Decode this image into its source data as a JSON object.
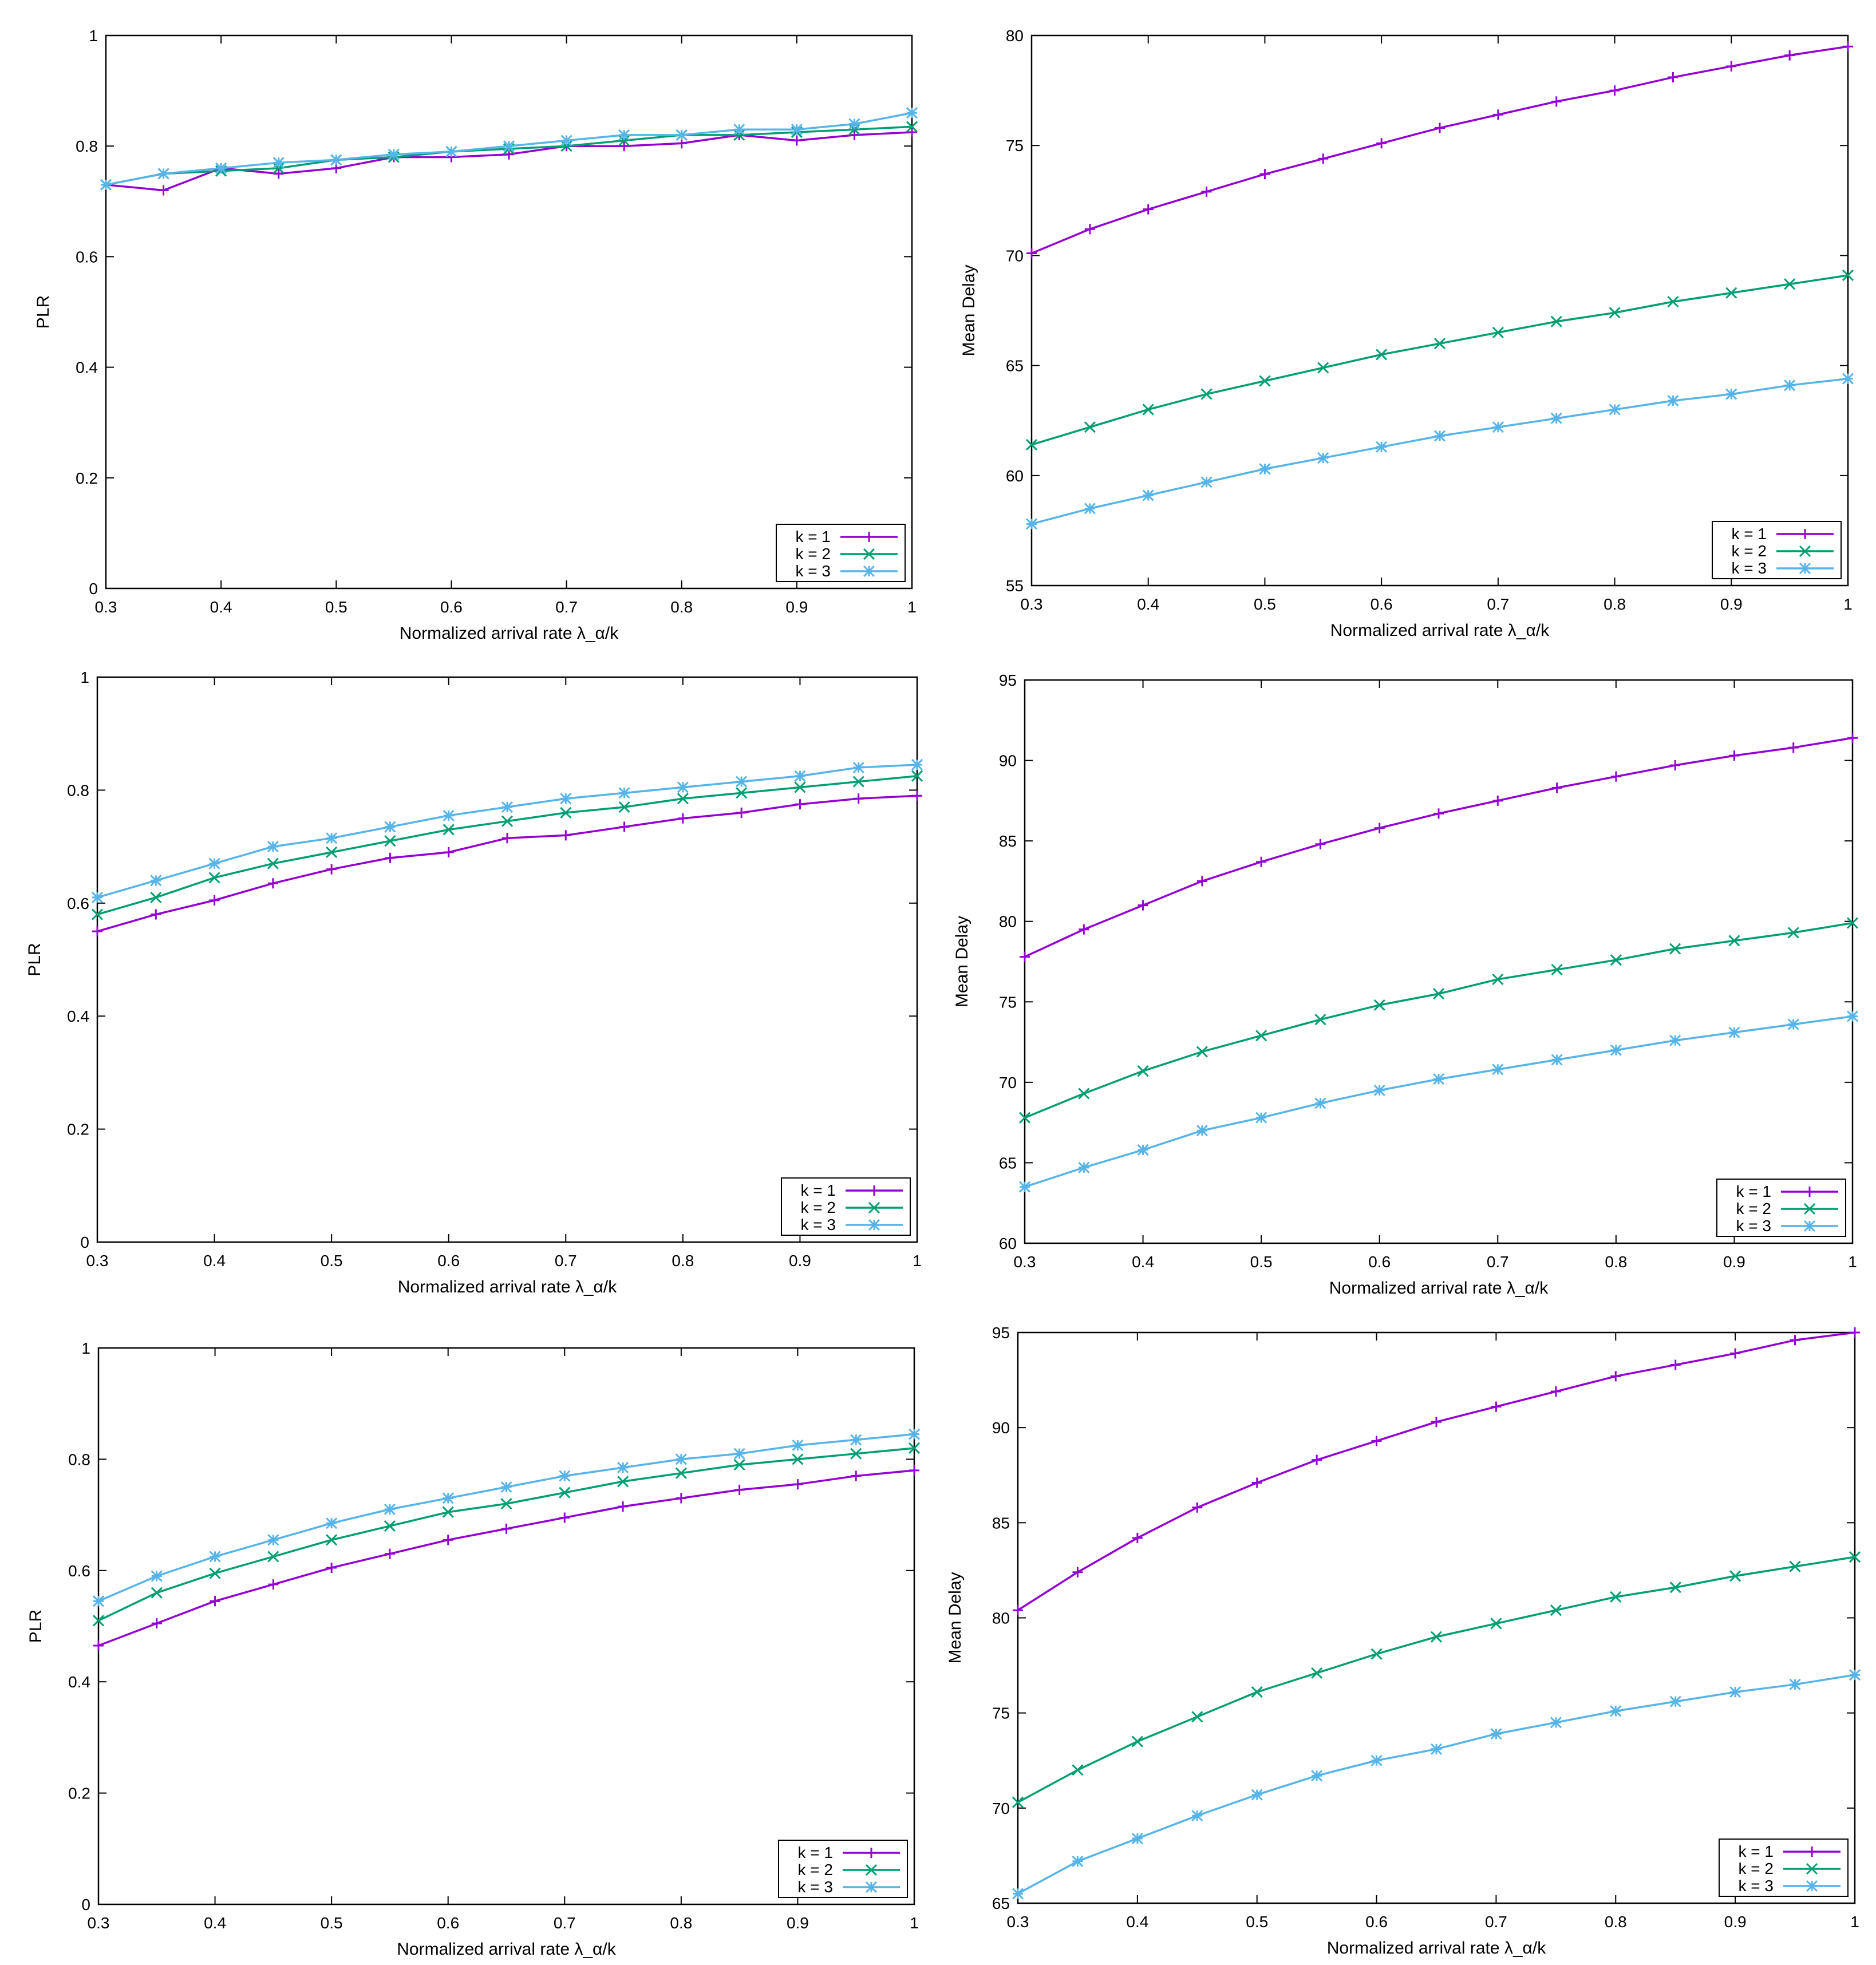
{
  "colors": {
    "k1": "#9400d3",
    "k2": "#009e73",
    "k3": "#56b4e9",
    "axis": "#000000"
  },
  "chart_data": [
    {
      "type": "line",
      "position": "top-left",
      "xlabel": "Normalized arrival rate λ_α/k",
      "ylabel": "PLR",
      "xlim": [
        0.3,
        1
      ],
      "ylim": [
        0,
        1
      ],
      "xticks": [
        "0.3",
        "0.4",
        "0.5",
        "0.6",
        "0.7",
        "0.8",
        "0.9",
        "1"
      ],
      "yticks": [
        "0",
        "0.2",
        "0.4",
        "0.6",
        "0.8",
        "1"
      ],
      "legend_placement": "bottom-right",
      "x": [
        0.3,
        0.35,
        0.4,
        0.45,
        0.5,
        0.55,
        0.6,
        0.65,
        0.7,
        0.75,
        0.8,
        0.85,
        0.9,
        0.95,
        1.0
      ],
      "series": [
        {
          "name": "k = 1",
          "values": [
            0.73,
            0.72,
            0.76,
            0.75,
            0.76,
            0.78,
            0.78,
            0.785,
            0.8,
            0.8,
            0.805,
            0.82,
            0.81,
            0.82,
            0.825
          ]
        },
        {
          "name": "k = 2",
          "values": [
            0.73,
            0.75,
            0.755,
            0.76,
            0.775,
            0.78,
            0.79,
            0.795,
            0.8,
            0.81,
            0.82,
            0.82,
            0.825,
            0.83,
            0.835
          ]
        },
        {
          "name": "k = 3",
          "values": [
            0.73,
            0.75,
            0.76,
            0.77,
            0.775,
            0.785,
            0.79,
            0.8,
            0.81,
            0.82,
            0.82,
            0.83,
            0.83,
            0.84,
            0.86
          ]
        }
      ]
    },
    {
      "type": "line",
      "position": "top-right",
      "xlabel": "Normalized arrival rate λ_α/k",
      "ylabel": "Mean Delay",
      "xlim": [
        0.3,
        1
      ],
      "ylim": [
        55,
        80
      ],
      "xticks": [
        "0.3",
        "0.4",
        "0.5",
        "0.6",
        "0.7",
        "0.8",
        "0.9",
        "1"
      ],
      "yticks": [
        "55",
        "60",
        "65",
        "70",
        "75",
        "80"
      ],
      "legend_placement": "bottom-right",
      "x": [
        0.3,
        0.35,
        0.4,
        0.45,
        0.5,
        0.55,
        0.6,
        0.65,
        0.7,
        0.75,
        0.8,
        0.85,
        0.9,
        0.95,
        1.0
      ],
      "series": [
        {
          "name": "k = 1",
          "values": [
            70.1,
            71.2,
            72.1,
            72.9,
            73.7,
            74.4,
            75.1,
            75.8,
            76.4,
            77.0,
            77.5,
            78.1,
            78.6,
            79.1,
            79.5
          ]
        },
        {
          "name": "k = 2",
          "values": [
            61.4,
            62.2,
            63.0,
            63.7,
            64.3,
            64.9,
            65.5,
            66.0,
            66.5,
            67.0,
            67.4,
            67.9,
            68.3,
            68.7,
            69.1
          ]
        },
        {
          "name": "k = 3",
          "values": [
            57.8,
            58.5,
            59.1,
            59.7,
            60.3,
            60.8,
            61.3,
            61.8,
            62.2,
            62.6,
            63.0,
            63.4,
            63.7,
            64.1,
            64.4
          ]
        }
      ]
    },
    {
      "type": "line",
      "position": "middle-left",
      "xlabel": "Normalized arrival rate λ_α/k",
      "ylabel": "PLR",
      "xlim": [
        0.3,
        1
      ],
      "ylim": [
        0,
        1
      ],
      "xticks": [
        "0.3",
        "0.4",
        "0.5",
        "0.6",
        "0.7",
        "0.8",
        "0.9",
        "1"
      ],
      "yticks": [
        "0",
        "0.2",
        "0.4",
        "0.6",
        "0.8",
        "1"
      ],
      "legend_placement": "bottom-right",
      "x": [
        0.3,
        0.35,
        0.4,
        0.45,
        0.5,
        0.55,
        0.6,
        0.65,
        0.7,
        0.75,
        0.8,
        0.85,
        0.9,
        0.95,
        1.0
      ],
      "series": [
        {
          "name": "k = 1",
          "values": [
            0.55,
            0.58,
            0.605,
            0.635,
            0.66,
            0.68,
            0.69,
            0.715,
            0.72,
            0.735,
            0.75,
            0.76,
            0.775,
            0.785,
            0.79
          ]
        },
        {
          "name": "k = 2",
          "values": [
            0.58,
            0.61,
            0.645,
            0.67,
            0.69,
            0.71,
            0.73,
            0.745,
            0.76,
            0.77,
            0.785,
            0.795,
            0.805,
            0.815,
            0.825
          ]
        },
        {
          "name": "k = 3",
          "values": [
            0.61,
            0.64,
            0.67,
            0.7,
            0.715,
            0.735,
            0.755,
            0.77,
            0.785,
            0.795,
            0.805,
            0.815,
            0.825,
            0.84,
            0.845
          ]
        }
      ]
    },
    {
      "type": "line",
      "position": "middle-right",
      "xlabel": "Normalized arrival rate λ_α/k",
      "ylabel": "Mean Delay",
      "xlim": [
        0.3,
        1
      ],
      "ylim": [
        60,
        95
      ],
      "xticks": [
        "0.3",
        "0.4",
        "0.5",
        "0.6",
        "0.7",
        "0.8",
        "0.9",
        "1"
      ],
      "yticks": [
        "60",
        "65",
        "70",
        "75",
        "80",
        "85",
        "90",
        "95"
      ],
      "legend_placement": "bottom-right",
      "x": [
        0.3,
        0.35,
        0.4,
        0.45,
        0.5,
        0.55,
        0.6,
        0.65,
        0.7,
        0.75,
        0.8,
        0.85,
        0.9,
        0.95,
        1.0
      ],
      "series": [
        {
          "name": "k = 1",
          "values": [
            77.8,
            79.5,
            81.0,
            82.5,
            83.7,
            84.8,
            85.8,
            86.7,
            87.5,
            88.3,
            89.0,
            89.7,
            90.3,
            90.8,
            91.4
          ]
        },
        {
          "name": "k = 2",
          "values": [
            67.8,
            69.3,
            70.7,
            71.9,
            72.9,
            73.9,
            74.8,
            75.5,
            76.4,
            77.0,
            77.6,
            78.3,
            78.8,
            79.3,
            79.9
          ]
        },
        {
          "name": "k = 3",
          "values": [
            63.5,
            64.7,
            65.8,
            67.0,
            67.8,
            68.7,
            69.5,
            70.2,
            70.8,
            71.4,
            72.0,
            72.6,
            73.1,
            73.6,
            74.1
          ]
        }
      ]
    },
    {
      "type": "line",
      "position": "bottom-left",
      "xlabel": "Normalized arrival rate λ_α/k",
      "ylabel": "PLR",
      "xlim": [
        0.3,
        1
      ],
      "ylim": [
        0,
        1
      ],
      "xticks": [
        "0.3",
        "0.4",
        "0.5",
        "0.6",
        "0.7",
        "0.8",
        "0.9",
        "1"
      ],
      "yticks": [
        "0",
        "0.2",
        "0.4",
        "0.6",
        "0.8",
        "1"
      ],
      "legend_placement": "bottom-right",
      "x": [
        0.3,
        0.35,
        0.4,
        0.45,
        0.5,
        0.55,
        0.6,
        0.65,
        0.7,
        0.75,
        0.8,
        0.85,
        0.9,
        0.95,
        1.0
      ],
      "series": [
        {
          "name": "k = 1",
          "values": [
            0.465,
            0.505,
            0.545,
            0.575,
            0.605,
            0.63,
            0.655,
            0.675,
            0.695,
            0.715,
            0.73,
            0.745,
            0.755,
            0.77,
            0.78
          ]
        },
        {
          "name": "k = 2",
          "values": [
            0.51,
            0.56,
            0.595,
            0.625,
            0.655,
            0.68,
            0.705,
            0.72,
            0.74,
            0.76,
            0.775,
            0.79,
            0.8,
            0.81,
            0.82
          ]
        },
        {
          "name": "k = 3",
          "values": [
            0.545,
            0.59,
            0.625,
            0.655,
            0.685,
            0.71,
            0.73,
            0.75,
            0.77,
            0.785,
            0.8,
            0.81,
            0.825,
            0.835,
            0.845
          ]
        }
      ]
    },
    {
      "type": "line",
      "position": "bottom-right",
      "xlabel": "Normalized arrival rate λ_α/k",
      "ylabel": "Mean Delay",
      "xlim": [
        0.3,
        1
      ],
      "ylim": [
        65,
        95
      ],
      "xticks": [
        "0.3",
        "0.4",
        "0.5",
        "0.6",
        "0.7",
        "0.8",
        "0.9",
        "1"
      ],
      "yticks": [
        "65",
        "70",
        "75",
        "80",
        "85",
        "90",
        "95"
      ],
      "legend_placement": "bottom-right",
      "x": [
        0.3,
        0.35,
        0.4,
        0.45,
        0.5,
        0.55,
        0.6,
        0.65,
        0.7,
        0.75,
        0.8,
        0.85,
        0.9,
        0.95,
        1.0
      ],
      "series": [
        {
          "name": "k = 1",
          "values": [
            80.4,
            82.4,
            84.2,
            85.8,
            87.1,
            88.3,
            89.3,
            90.3,
            91.1,
            91.9,
            92.7,
            93.3,
            93.9,
            94.6,
            95.0
          ]
        },
        {
          "name": "k = 2",
          "values": [
            70.3,
            72.0,
            73.5,
            74.8,
            76.1,
            77.1,
            78.1,
            79.0,
            79.7,
            80.4,
            81.1,
            81.6,
            82.2,
            82.7,
            83.2
          ]
        },
        {
          "name": "k = 3",
          "values": [
            65.5,
            67.2,
            68.4,
            69.6,
            70.7,
            71.7,
            72.5,
            73.1,
            73.9,
            74.5,
            75.1,
            75.6,
            76.1,
            76.5,
            77.0
          ]
        }
      ]
    }
  ]
}
